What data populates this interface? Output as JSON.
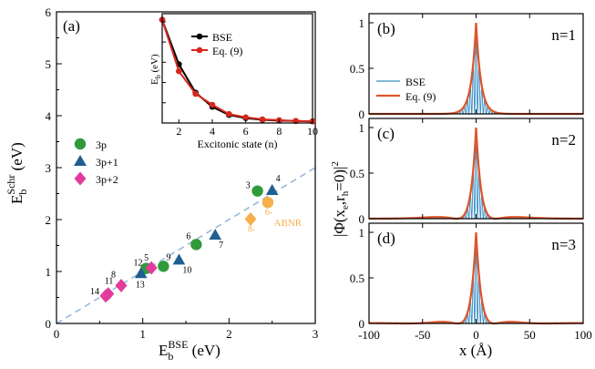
{
  "colors": {
    "green": "#2f9a3c",
    "blue": "#1f5f93",
    "magenta": "#e23b9c",
    "orange": "#f5b04b",
    "bse_line": "#000000",
    "eq9_line": "#d8271d",
    "wf_blue": "#3b8fc4",
    "wf_red": "#e0542a",
    "dashed": "#9ab8d8"
  },
  "chart_data": [
    {
      "id": "a",
      "type": "scatter",
      "panel_label": "(a)",
      "xlabel": "E_b^BSE (eV)",
      "ylabel": "E_b^Schr (eV)",
      "xlim": [
        0,
        3
      ],
      "ylim": [
        0,
        6
      ],
      "xticks": [
        0,
        1,
        2,
        3
      ],
      "yticks": [
        0,
        1,
        2,
        3,
        4,
        5,
        6
      ],
      "legend": {
        "placement": "left",
        "entries": [
          {
            "name": "3p",
            "marker": "circle",
            "color": "#2f9a3c"
          },
          {
            "name": "3p+1",
            "marker": "triangle",
            "color": "#1f5f93"
          },
          {
            "name": "3p+2",
            "marker": "diamond",
            "color": "#e23b9c"
          }
        ]
      },
      "reference_line": {
        "style": "dashed",
        "x": [
          0,
          3
        ],
        "y": [
          0,
          3
        ]
      },
      "series": [
        {
          "name": "3p",
          "marker": "circle",
          "color": "#2f9a3c",
          "points": [
            {
              "label": "3",
              "x": 2.33,
              "y": 2.55
            },
            {
              "label": "6",
              "x": 1.62,
              "y": 1.52
            },
            {
              "label": "9",
              "x": 1.24,
              "y": 1.1
            },
            {
              "label": "12",
              "x": 1.04,
              "y": 1.06
            }
          ]
        },
        {
          "name": "3p+1",
          "marker": "triangle",
          "color": "#1f5f93",
          "points": [
            {
              "label": "4",
              "x": 2.5,
              "y": 2.56
            },
            {
              "label": "7",
              "x": 1.84,
              "y": 1.7
            },
            {
              "label": "10",
              "x": 1.42,
              "y": 1.22
            },
            {
              "label": "13",
              "x": 0.98,
              "y": 0.96
            }
          ]
        },
        {
          "name": "3p+2",
          "marker": "diamond",
          "color": "#e23b9c",
          "points": [
            {
              "label": "5",
              "x": 1.1,
              "y": 1.07
            },
            {
              "label": "8",
              "x": 0.75,
              "y": 0.73
            },
            {
              "label": "11",
              "x": 0.6,
              "y": 0.57
            },
            {
              "label": "14",
              "x": 0.57,
              "y": 0.53
            }
          ]
        },
        {
          "name": "ABNR",
          "marker": "circle",
          "color": "#f5b04b",
          "points": [
            {
              "label": "6-",
              "x": 2.45,
              "y": 2.33
            }
          ]
        },
        {
          "name": "ABNR",
          "marker": "diamond",
          "color": "#f5b04b",
          "points": [
            {
              "label": "8-",
              "x": 2.25,
              "y": 2.01
            }
          ]
        }
      ],
      "annotation": "ABNR"
    },
    {
      "id": "a-inset",
      "type": "line",
      "xlabel": "Excitonic state (n)",
      "ylabel": "E_b (eV)",
      "xlim": [
        1,
        10
      ],
      "ylim": [
        0,
        2.7
      ],
      "xticks": [
        2,
        4,
        6,
        8,
        10
      ],
      "yticks": [
        0,
        0.5,
        1,
        1.5,
        2,
        2.5
      ],
      "legend": {
        "placement": "top-right"
      },
      "series": [
        {
          "name": "BSE",
          "color": "#000000",
          "x": [
            1,
            2,
            3,
            4,
            5,
            6,
            7,
            8,
            9,
            10
          ],
          "y": [
            2.55,
            1.45,
            0.75,
            0.4,
            0.2,
            0.12,
            0.08,
            0.06,
            0.05,
            0.04
          ]
        },
        {
          "name": "Eq. (9)",
          "color": "#d8271d",
          "x": [
            1,
            2,
            3,
            4,
            5,
            6,
            7,
            8,
            9,
            10
          ],
          "y": [
            2.55,
            1.28,
            0.72,
            0.45,
            0.22,
            0.14,
            0.09,
            0.07,
            0.05,
            0.04
          ]
        }
      ]
    },
    {
      "id": "b",
      "type": "line",
      "panel_label": "(b)",
      "annotation": "n=1",
      "xlim": [
        -100,
        100
      ],
      "ylim": [
        0,
        1.1
      ],
      "yticks": [
        0,
        0.5,
        1
      ],
      "ytick_labels": [
        "0",
        "0.5",
        "1"
      ],
      "legend": {
        "placement": "left",
        "entries": [
          "BSE",
          "Eq. (9)"
        ]
      },
      "series": [
        {
          "name": "BSE",
          "color": "#3b8fc4",
          "n": 1
        },
        {
          "name": "Eq. (9)",
          "color": "#e0542a",
          "n": 1
        }
      ]
    },
    {
      "id": "c",
      "type": "line",
      "panel_label": "(c)",
      "annotation": "n=2",
      "xlim": [
        -100,
        100
      ],
      "ylim": [
        0,
        1.1
      ],
      "yticks": [
        0,
        0.5,
        1
      ],
      "ytick_labels": [
        "0",
        "0.5",
        "1"
      ],
      "series": [
        {
          "name": "BSE",
          "color": "#3b8fc4",
          "n": 2
        },
        {
          "name": "Eq. (9)",
          "color": "#e0542a",
          "n": 2
        }
      ]
    },
    {
      "id": "d",
      "type": "line",
      "panel_label": "(d)",
      "annotation": "n=3",
      "xlabel": "x (Å)",
      "xlim": [
        -100,
        100
      ],
      "ylim": [
        0,
        1.1
      ],
      "xticks": [
        -100,
        -50,
        0,
        50,
        100
      ],
      "yticks": [
        0,
        0.5,
        1
      ],
      "ytick_labels": [
        "0",
        "0.5",
        "1"
      ],
      "series": [
        {
          "name": "BSE",
          "color": "#3b8fc4",
          "n": 3
        },
        {
          "name": "Eq. (9)",
          "color": "#e0542a",
          "n": 3
        }
      ]
    }
  ],
  "shared_ylabel": "|Φ(x_e,r_h=0)|^2"
}
